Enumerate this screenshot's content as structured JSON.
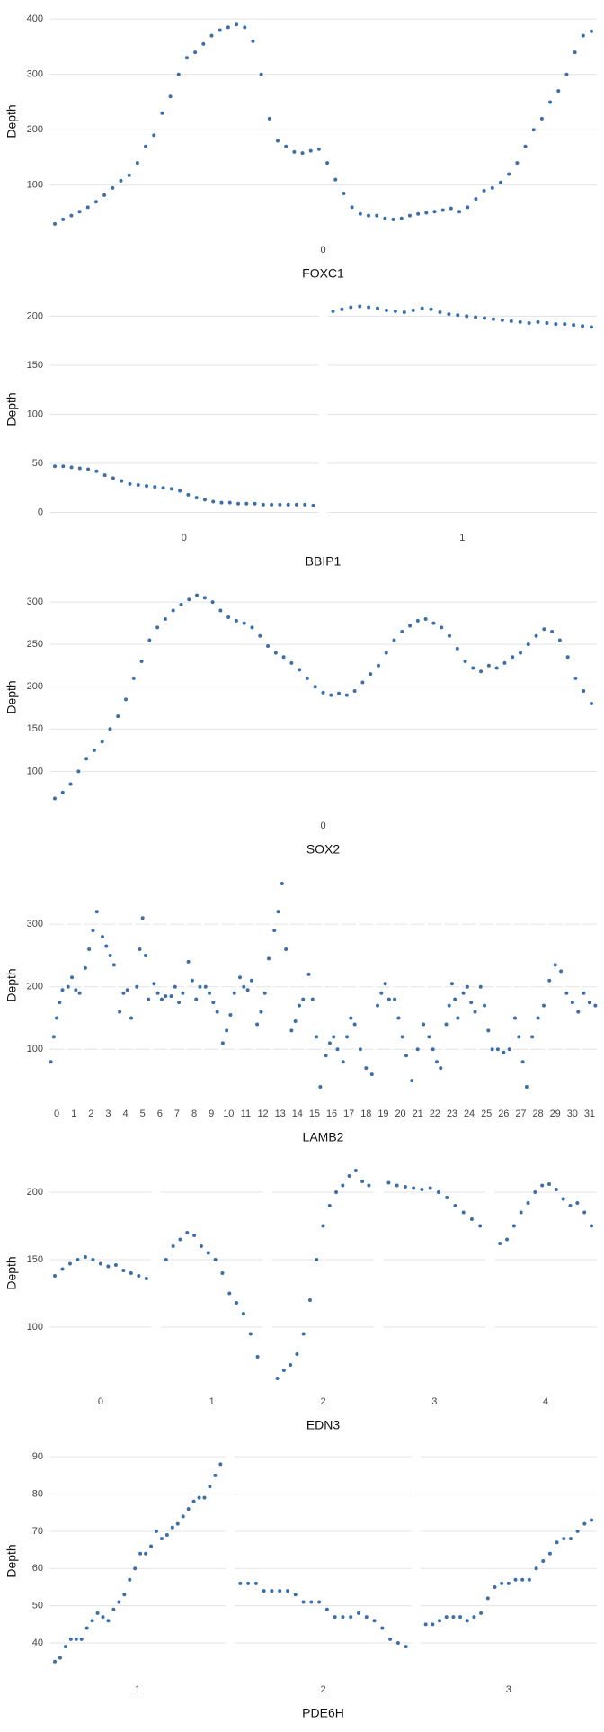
{
  "chart_data": [
    {
      "type": "scatter",
      "x_label": "FOXC1",
      "y_label": "Depth",
      "color": "#3d6fa6",
      "grid": true,
      "ylim": [
        20,
        410
      ],
      "yticks": [
        100,
        200,
        300,
        400
      ],
      "panels": [
        {
          "label": "0",
          "values": [
            30,
            38,
            45,
            52,
            60,
            70,
            82,
            95,
            108,
            118,
            140,
            170,
            190,
            230,
            260,
            300,
            330,
            340,
            355,
            370,
            380,
            385,
            390,
            385,
            360,
            300,
            220,
            180,
            170,
            160,
            158,
            162,
            165,
            140,
            110,
            85,
            60,
            48,
            45,
            45,
            40,
            38,
            40,
            45,
            48,
            50,
            52,
            55,
            58,
            52,
            60,
            75,
            90,
            95,
            105,
            120,
            140,
            170,
            200,
            220,
            250,
            270,
            300,
            340,
            370,
            378
          ]
        }
      ]
    },
    {
      "type": "scatter",
      "x_label": "BBIP1",
      "y_label": "Depth",
      "color": "#3d6fa6",
      "grid": true,
      "ylim": [
        -5,
        215
      ],
      "yticks": [
        0,
        50,
        100,
        150,
        200
      ],
      "panels": [
        {
          "label": "0",
          "values": [
            47,
            47,
            46,
            45,
            44,
            42,
            38,
            35,
            32,
            29,
            28,
            27,
            26,
            25,
            24,
            22,
            18,
            15,
            13,
            11,
            10,
            10,
            9,
            9,
            9,
            8,
            8,
            8,
            8,
            8,
            8,
            7
          ]
        },
        {
          "label": "1",
          "values": [
            205,
            207,
            209,
            210,
            209,
            208,
            206,
            205,
            204,
            206,
            208,
            207,
            204,
            202,
            201,
            200,
            199,
            198,
            197,
            196,
            195,
            194,
            193,
            194,
            193,
            192,
            192,
            191,
            190,
            189
          ]
        }
      ]
    },
    {
      "type": "scatter",
      "x_label": "SOX2",
      "y_label": "Depth",
      "color": "#3d6fa6",
      "grid": true,
      "ylim": [
        60,
        315
      ],
      "yticks": [
        100,
        150,
        200,
        250,
        300
      ],
      "panels": [
        {
          "label": "0",
          "values": [
            68,
            75,
            85,
            100,
            115,
            125,
            135,
            150,
            165,
            185,
            210,
            230,
            255,
            270,
            280,
            290,
            297,
            303,
            308,
            305,
            300,
            290,
            282,
            278,
            275,
            270,
            260,
            248,
            240,
            235,
            228,
            220,
            210,
            200,
            193,
            190,
            192,
            190,
            195,
            205,
            215,
            225,
            240,
            255,
            265,
            272,
            278,
            280,
            275,
            270,
            260,
            245,
            230,
            222,
            218,
            225,
            222,
            228,
            235,
            240,
            250,
            260,
            268,
            265,
            255,
            235,
            210,
            195,
            180
          ]
        }
      ]
    },
    {
      "type": "scatter",
      "x_label": "LAMB2",
      "y_label": "Depth",
      "color": "#3d6fa6",
      "grid": true,
      "ylim": [
        30,
        375
      ],
      "yticks": [
        100,
        200,
        300
      ],
      "panels": [
        {
          "label": "0",
          "values": [
            80,
            120,
            150,
            175,
            195
          ]
        },
        {
          "label": "1",
          "values": [
            200,
            215,
            195,
            190
          ]
        },
        {
          "label": "2",
          "values": [
            230,
            260,
            290,
            320
          ]
        },
        {
          "label": "3",
          "values": [
            280,
            265,
            250,
            235
          ]
        },
        {
          "label": "4",
          "values": [
            160,
            190,
            195,
            150
          ]
        },
        {
          "label": "5",
          "values": [
            200,
            260,
            310,
            250,
            180
          ]
        },
        {
          "label": "6",
          "values": [
            205,
            190,
            180,
            185
          ]
        },
        {
          "label": "7",
          "values": [
            185,
            200,
            175,
            190
          ]
        },
        {
          "label": "8",
          "values": [
            240,
            210,
            180,
            200
          ]
        },
        {
          "label": "9",
          "values": [
            200,
            190,
            175,
            160
          ]
        },
        {
          "label": "10",
          "values": [
            110,
            130,
            155,
            190
          ]
        },
        {
          "label": "11",
          "values": [
            215,
            200,
            195,
            210
          ]
        },
        {
          "label": "12",
          "values": [
            140,
            160,
            190,
            245
          ]
        },
        {
          "label": "13",
          "values": [
            290,
            320,
            365,
            260
          ]
        },
        {
          "label": "14",
          "values": [
            130,
            145,
            170,
            180
          ]
        },
        {
          "label": "15",
          "values": [
            220,
            180,
            120,
            40
          ]
        },
        {
          "label": "16",
          "values": [
            90,
            110,
            120,
            100
          ]
        },
        {
          "label": "17",
          "values": [
            80,
            120,
            150,
            140
          ]
        },
        {
          "label": "18",
          "values": [
            100,
            70,
            60
          ]
        },
        {
          "label": "19",
          "values": [
            170,
            190,
            205,
            180
          ]
        },
        {
          "label": "20",
          "values": [
            180,
            150,
            120,
            90
          ]
        },
        {
          "label": "21",
          "values": [
            50,
            100,
            140
          ]
        },
        {
          "label": "22",
          "values": [
            120,
            100,
            80,
            70
          ]
        },
        {
          "label": "23",
          "values": [
            140,
            170,
            205,
            180,
            150
          ]
        },
        {
          "label": "24",
          "values": [
            190,
            200,
            175,
            160
          ]
        },
        {
          "label": "25",
          "values": [
            200,
            170,
            130,
            100
          ]
        },
        {
          "label": "26",
          "values": [
            100,
            95,
            100
          ]
        },
        {
          "label": "27",
          "values": [
            150,
            120,
            80,
            40
          ]
        },
        {
          "label": "28",
          "values": [
            120,
            150,
            170
          ]
        },
        {
          "label": "29",
          "values": [
            210,
            235,
            225
          ]
        },
        {
          "label": "30",
          "values": [
            190,
            175,
            160
          ]
        },
        {
          "label": "31",
          "values": [
            190,
            175,
            170
          ]
        }
      ]
    },
    {
      "type": "scatter",
      "x_label": "EDN3",
      "y_label": "Depth",
      "color": "#3d6fa6",
      "grid": true,
      "ylim": [
        60,
        220
      ],
      "yticks": [
        100,
        150,
        200
      ],
      "panels": [
        {
          "label": "0",
          "values": [
            138,
            143,
            147,
            150,
            152,
            150,
            147,
            145,
            146,
            142,
            140,
            138,
            136
          ]
        },
        {
          "label": "1",
          "values": [
            150,
            160,
            165,
            170,
            168,
            160,
            155,
            150,
            140,
            125,
            118,
            110,
            95,
            78
          ]
        },
        {
          "label": "2",
          "values": [
            62,
            68,
            72,
            80,
            95,
            120,
            150,
            175,
            190,
            200,
            205,
            212,
            216,
            208,
            205
          ]
        },
        {
          "label": "3",
          "values": [
            207,
            205,
            204,
            203,
            202,
            203,
            200,
            196,
            190,
            185,
            180,
            175
          ]
        },
        {
          "label": "4",
          "values": [
            162,
            165,
            175,
            185,
            192,
            200,
            205,
            206,
            202,
            195,
            190,
            192,
            185,
            175
          ]
        }
      ]
    },
    {
      "type": "scatter",
      "x_label": "PDE6H",
      "y_label": "Depth",
      "color": "#3d6fa6",
      "grid": true,
      "ylim": [
        33,
        91
      ],
      "yticks": [
        40,
        50,
        60,
        70,
        80,
        90
      ],
      "panels": [
        {
          "label": "1",
          "values": [
            35,
            36,
            39,
            41,
            41,
            41,
            44,
            46,
            48,
            47,
            46,
            49,
            51,
            53,
            57,
            60,
            64,
            64,
            66,
            70,
            68,
            69,
            71,
            72,
            74,
            76,
            78,
            79,
            79,
            82,
            85,
            88
          ]
        },
        {
          "label": "2",
          "values": [
            56,
            56,
            56,
            54,
            54,
            54,
            54,
            53,
            51,
            51,
            51,
            49,
            47,
            47,
            47,
            48,
            47,
            46,
            44,
            41,
            40,
            39
          ]
        },
        {
          "label": "3",
          "values": [
            45,
            45,
            46,
            47,
            47,
            47,
            46,
            47,
            48,
            52,
            55,
            56,
            56,
            57,
            57,
            57,
            60,
            62,
            64,
            67,
            68,
            68,
            70,
            72,
            73
          ]
        }
      ]
    }
  ]
}
